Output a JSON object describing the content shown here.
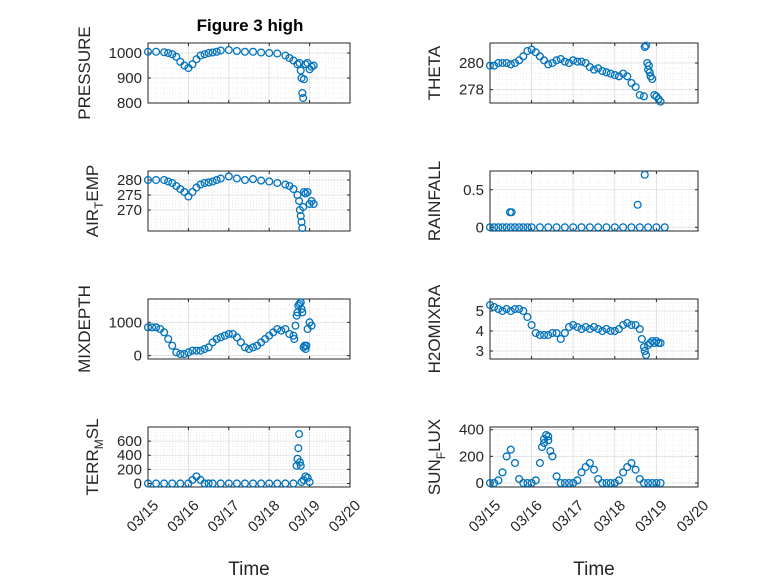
{
  "figure_title": "Figure 3 high",
  "colors": {
    "marker": "#0072BD",
    "axis": "#262626",
    "grid": "#dedede"
  },
  "chart_data": [
    {
      "type": "scatter",
      "name_key": "pressure",
      "ylabel": "PRESSURE",
      "ylabel_sub": "",
      "ylim": [
        800,
        1040
      ],
      "yticks": [
        800,
        900,
        1000
      ],
      "xlim": [
        0,
        5
      ],
      "xticks": [
        "03/15",
        "03/16",
        "03/17",
        "03/18",
        "03/19",
        "03/20"
      ],
      "x_tick_labels_visible": false,
      "xlabel": "",
      "grid": true,
      "series": [
        {
          "x": [
            0,
            0.2,
            0.4,
            0.5,
            0.6,
            0.7,
            0.8,
            0.9,
            1.0,
            1.1,
            1.2,
            1.3,
            1.4,
            1.5,
            1.6,
            1.7,
            1.8,
            2.0,
            2.2,
            2.4,
            2.6,
            2.8,
            3.0,
            3.2,
            3.4,
            3.5,
            3.6,
            3.7
          ],
          "y": [
            1005,
            1005,
            1003,
            1000,
            995,
            985,
            965,
            950,
            940,
            955,
            975,
            990,
            995,
            1000,
            1002,
            1005,
            1010,
            1012,
            1008,
            1005,
            1005,
            1002,
            1000,
            998,
            990,
            980,
            970,
            955
          ]
        },
        {
          "x": [
            3.75,
            3.78,
            3.8,
            3.82,
            3.84,
            3.86,
            3.9,
            3.95,
            4.0,
            4.05,
            4.1
          ],
          "y": [
            960,
            930,
            900,
            840,
            820,
            895,
            955,
            960,
            935,
            945,
            950
          ]
        }
      ]
    },
    {
      "type": "scatter",
      "name_key": "theta",
      "ylabel": "THETA",
      "ylabel_sub": "",
      "ylim": [
        277,
        281.5
      ],
      "yticks": [
        278,
        280
      ],
      "xlim": [
        0,
        5
      ],
      "xticks": [
        "03/15",
        "03/16",
        "03/17",
        "03/18",
        "03/19",
        "03/20"
      ],
      "x_tick_labels_visible": false,
      "xlabel": "",
      "grid": true,
      "series": [
        {
          "x": [
            0,
            0.1,
            0.2,
            0.3,
            0.4,
            0.5,
            0.6,
            0.7,
            0.8,
            0.9,
            1.0,
            1.1,
            1.2,
            1.3,
            1.4,
            1.5,
            1.6,
            1.7,
            1.8,
            1.9,
            2.0,
            2.1,
            2.2,
            2.3,
            2.4,
            2.5,
            2.6,
            2.7,
            2.8,
            2.9,
            3.0,
            3.1,
            3.2,
            3.3,
            3.4,
            3.5,
            3.6,
            3.7
          ],
          "y": [
            279.8,
            279.8,
            280,
            280,
            280,
            279.9,
            280,
            280.2,
            280.5,
            280.9,
            281.0,
            280.8,
            280.5,
            280.2,
            279.9,
            280,
            280.2,
            280.3,
            280.1,
            280,
            280.2,
            280.1,
            280.1,
            280,
            279.7,
            279.5,
            279.6,
            279.4,
            279.3,
            279.2,
            279.1,
            279,
            279.2,
            279,
            278.5,
            278.2,
            277.6,
            277.5
          ]
        },
        {
          "x": [
            3.72,
            3.75,
            3.78,
            3.8,
            3.82,
            3.84,
            3.86,
            3.9,
            3.95,
            4.0,
            4.05,
            4.1
          ],
          "y": [
            281.2,
            281.3,
            280,
            279.5,
            279.8,
            279.3,
            279.0,
            278.8,
            277.6,
            277.5,
            277.3,
            277.1
          ]
        }
      ]
    },
    {
      "type": "scatter",
      "name_key": "air_temp",
      "ylabel": "AIR",
      "ylabel_sub": "T",
      "ylabel_suffix": "EMP",
      "ylim": [
        263,
        283
      ],
      "yticks": [
        270,
        275,
        280
      ],
      "xlim": [
        0,
        5
      ],
      "xticks": [
        "03/15",
        "03/16",
        "03/17",
        "03/18",
        "03/19",
        "03/20"
      ],
      "x_tick_labels_visible": false,
      "xlabel": "",
      "grid": true,
      "series": [
        {
          "x": [
            0,
            0.2,
            0.4,
            0.5,
            0.6,
            0.7,
            0.8,
            0.9,
            1.0,
            1.1,
            1.2,
            1.3,
            1.4,
            1.5,
            1.6,
            1.7,
            1.8,
            2.0,
            2.2,
            2.4,
            2.6,
            2.8,
            3.0,
            3.2,
            3.4,
            3.5,
            3.6,
            3.7
          ],
          "y": [
            280,
            280,
            280,
            279.5,
            279,
            278,
            277,
            276,
            274.5,
            276,
            277.5,
            278.5,
            279,
            279.2,
            279.5,
            280,
            280.5,
            281.2,
            280.5,
            280,
            280.3,
            279.8,
            279.5,
            279,
            278.5,
            278,
            277,
            275
          ]
        },
        {
          "x": [
            3.74,
            3.76,
            3.78,
            3.8,
            3.82,
            3.84,
            3.86,
            3.9,
            3.95,
            4.0,
            4.05,
            4.1
          ],
          "y": [
            273,
            270,
            268,
            266,
            264,
            271,
            276,
            275.5,
            276,
            272,
            273,
            272
          ]
        }
      ]
    },
    {
      "type": "scatter",
      "name_key": "rainfall",
      "ylabel": "RAINFALL",
      "ylabel_sub": "",
      "ylim": [
        -0.05,
        0.75
      ],
      "yticks": [
        0,
        0.5
      ],
      "xlim": [
        0,
        5
      ],
      "xticks": [
        "03/15",
        "03/16",
        "03/17",
        "03/18",
        "03/19",
        "03/20"
      ],
      "x_tick_labels_visible": false,
      "xlabel": "",
      "grid": true,
      "series": [
        {
          "x": [
            0,
            0.1,
            0.2,
            0.3,
            0.4,
            0.5,
            0.6,
            0.7,
            0.8,
            0.9,
            1.0,
            1.2,
            1.4,
            1.6,
            1.8,
            2.0,
            2.2,
            2.4,
            2.6,
            2.8,
            3.0,
            3.2,
            3.4,
            3.6,
            3.8,
            4.0,
            4.2
          ],
          "y": [
            0,
            0,
            0,
            0,
            0,
            0,
            0,
            0,
            0,
            0,
            0,
            0,
            0,
            0,
            0,
            0,
            0,
            0,
            0,
            0,
            0,
            0,
            0,
            0,
            0,
            0,
            0
          ]
        },
        {
          "x": [
            0.48,
            0.52,
            3.55,
            3.72
          ],
          "y": [
            0.2,
            0.2,
            0.3,
            0.7
          ]
        }
      ]
    },
    {
      "type": "scatter",
      "name_key": "mixdepth",
      "ylabel": "MIXDEPTH",
      "ylabel_sub": "",
      "ylim": [
        -100,
        1700
      ],
      "yticks": [
        0,
        1000
      ],
      "xlim": [
        0,
        5
      ],
      "xticks": [
        "03/15",
        "03/16",
        "03/17",
        "03/18",
        "03/19",
        "03/20"
      ],
      "x_tick_labels_visible": false,
      "xlabel": "",
      "grid": true,
      "series": [
        {
          "x": [
            0,
            0.1,
            0.2,
            0.3,
            0.4,
            0.5,
            0.6,
            0.7,
            0.8,
            0.9,
            1.0,
            1.1,
            1.2,
            1.3,
            1.4,
            1.5,
            1.6,
            1.7,
            1.8,
            1.9,
            2.0,
            2.1,
            2.2,
            2.3,
            2.4,
            2.5,
            2.6,
            2.7,
            2.8,
            2.9,
            3.0,
            3.1,
            3.2,
            3.3,
            3.4,
            3.5,
            3.6
          ],
          "y": [
            850,
            850,
            850,
            800,
            700,
            500,
            300,
            100,
            50,
            50,
            100,
            150,
            150,
            150,
            200,
            250,
            400,
            500,
            550,
            600,
            650,
            650,
            550,
            400,
            250,
            200,
            250,
            300,
            400,
            500,
            600,
            700,
            800,
            750,
            800,
            650,
            600
          ]
        },
        {
          "x": [
            3.62,
            3.65,
            3.68,
            3.7,
            3.72,
            3.75,
            3.78,
            3.8,
            3.82,
            3.85,
            3.88,
            3.9,
            3.92,
            3.95,
            4.0,
            4.05
          ],
          "y": [
            500,
            900,
            1200,
            1300,
            1500,
            1550,
            1600,
            1400,
            1300,
            250,
            300,
            200,
            300,
            800,
            1000,
            900
          ]
        }
      ]
    },
    {
      "type": "scatter",
      "name_key": "h2omixra",
      "ylabel": "H2OMIXRA",
      "ylabel_sub": "",
      "ylim": [
        2.6,
        5.6
      ],
      "yticks": [
        3,
        4,
        5
      ],
      "xlim": [
        0,
        5
      ],
      "xticks": [
        "03/15",
        "03/16",
        "03/17",
        "03/18",
        "03/19",
        "03/20"
      ],
      "x_tick_labels_visible": false,
      "xlabel": "",
      "grid": true,
      "series": [
        {
          "x": [
            0,
            0.1,
            0.2,
            0.3,
            0.4,
            0.5,
            0.6,
            0.7,
            0.8,
            0.9,
            1.0,
            1.1,
            1.2,
            1.3,
            1.4,
            1.5,
            1.6,
            1.7,
            1.8,
            1.9,
            2.0,
            2.1,
            2.2,
            2.3,
            2.4,
            2.5,
            2.6,
            2.7,
            2.8,
            2.9,
            3.0,
            3.1,
            3.2,
            3.3,
            3.4,
            3.5,
            3.6
          ],
          "y": [
            5.3,
            5.2,
            5.1,
            5.0,
            5.1,
            5.0,
            5.1,
            5.1,
            5.0,
            4.7,
            4.3,
            3.9,
            3.8,
            3.8,
            3.8,
            3.9,
            3.9,
            3.6,
            3.9,
            4.2,
            4.3,
            4.2,
            4.1,
            4.2,
            4.1,
            4.2,
            4.1,
            4.0,
            4.1,
            4.0,
            4.0,
            4.1,
            4.3,
            4.4,
            4.3,
            4.3,
            4.1
          ]
        },
        {
          "x": [
            3.65,
            3.7,
            3.72,
            3.75,
            3.8,
            3.85,
            3.9,
            3.95,
            4.0,
            4.05,
            4.1
          ],
          "y": [
            3.6,
            3.2,
            3.0,
            2.8,
            3.3,
            3.4,
            3.5,
            3.4,
            3.5,
            3.4,
            3.4
          ]
        }
      ]
    },
    {
      "type": "scatter",
      "name_key": "terr_msl",
      "ylabel": "TERR",
      "ylabel_sub": "M",
      "ylabel_suffix": "SL",
      "ylim": [
        -50,
        800
      ],
      "yticks": [
        0,
        200,
        400,
        600
      ],
      "xlim": [
        0,
        5
      ],
      "xticks": [
        "03/15",
        "03/16",
        "03/17",
        "03/18",
        "03/19",
        "03/20"
      ],
      "x_tick_labels_visible": true,
      "xlabel": "Time",
      "grid": true,
      "series": [
        {
          "x": [
            0,
            0.2,
            0.4,
            0.6,
            0.8,
            1.0,
            1.1,
            1.2,
            1.3,
            1.4,
            1.5,
            1.6,
            1.8,
            2.0,
            2.2,
            2.4,
            2.6,
            2.8,
            3.0,
            3.2,
            3.4,
            3.6
          ],
          "y": [
            0,
            0,
            0,
            0,
            0,
            0,
            50,
            100,
            50,
            0,
            0,
            0,
            0,
            0,
            0,
            0,
            0,
            0,
            0,
            0,
            0,
            0
          ]
        },
        {
          "x": [
            3.68,
            3.7,
            3.72,
            3.74,
            3.76,
            3.78,
            3.8,
            3.85,
            3.9,
            3.95,
            4.0
          ],
          "y": [
            250,
            350,
            500,
            700,
            300,
            250,
            20,
            50,
            100,
            80,
            20
          ]
        }
      ]
    },
    {
      "type": "scatter",
      "name_key": "sun_flux",
      "ylabel": "SUN",
      "ylabel_sub": "F",
      "ylabel_suffix": "LUX",
      "ylim": [
        -30,
        420
      ],
      "yticks": [
        0,
        200,
        400
      ],
      "xlim": [
        0,
        5
      ],
      "xticks": [
        "03/15",
        "03/16",
        "03/17",
        "03/18",
        "03/19",
        "03/20"
      ],
      "x_tick_labels_visible": true,
      "xlabel": "Time",
      "grid": true,
      "series": [
        {
          "x": [
            0,
            0.1,
            0.2,
            0.3,
            0.4,
            0.5,
            0.6,
            0.7,
            0.8,
            0.9,
            1.0,
            1.1,
            1.2,
            1.3,
            1.4,
            1.5,
            1.6,
            1.7,
            1.8,
            1.9,
            2.0,
            2.1,
            2.2,
            2.3,
            2.4,
            2.5,
            2.6,
            2.7,
            2.8,
            2.9,
            3.0,
            3.1,
            3.2,
            3.3,
            3.4,
            3.5,
            3.6,
            3.7,
            3.8,
            3.9,
            4.0,
            4.1
          ],
          "y": [
            0,
            0,
            20,
            80,
            200,
            250,
            150,
            30,
            0,
            0,
            0,
            20,
            150,
            300,
            350,
            200,
            50,
            0,
            0,
            0,
            0,
            20,
            80,
            120,
            150,
            100,
            30,
            0,
            0,
            0,
            0,
            20,
            80,
            120,
            150,
            100,
            30,
            0,
            0,
            0,
            0,
            0
          ]
        },
        {
          "x": [
            1.25,
            1.3,
            1.35,
            1.4,
            1.45
          ],
          "y": [
            270,
            330,
            360,
            320,
            240
          ]
        }
      ]
    }
  ]
}
